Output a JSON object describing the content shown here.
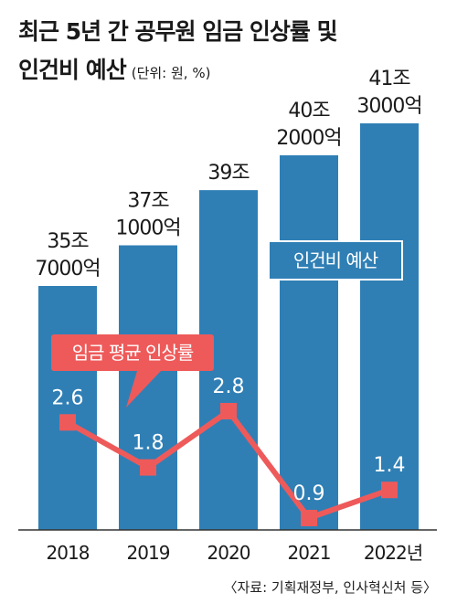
{
  "title": {
    "line1": "최근 5년 간 공무원 임금 인상률 및",
    "line2": "인건비 예산",
    "unit": "(단위: 원, %)"
  },
  "source": "〈자료: 기획재정부, 인사혁신처 등〉",
  "colors": {
    "bar": "#2f7fb5",
    "line": "#ee5a5a",
    "axis": "#333333",
    "text": "#1a1a1a"
  },
  "chart_data": {
    "type": "bar",
    "categories": [
      "2018",
      "2019",
      "2020",
      "2021",
      "2022년"
    ],
    "series": [
      {
        "name": "인건비 예산",
        "type": "bar",
        "values_trillion_won": [
          35.7,
          37.1,
          39.0,
          40.2,
          41.3
        ],
        "labels": [
          [
            "35조",
            "7000억"
          ],
          [
            "37조",
            "1000억"
          ],
          [
            "39조"
          ],
          [
            "40조",
            "2000억"
          ],
          [
            "41조",
            "3000억"
          ]
        ]
      },
      {
        "name": "임금 평균 인상률",
        "type": "line",
        "values_percent": [
          2.6,
          1.8,
          2.8,
          0.9,
          1.4
        ],
        "labels": [
          "2.6",
          "1.8",
          "2.8",
          "0.9",
          "1.4"
        ]
      }
    ]
  }
}
